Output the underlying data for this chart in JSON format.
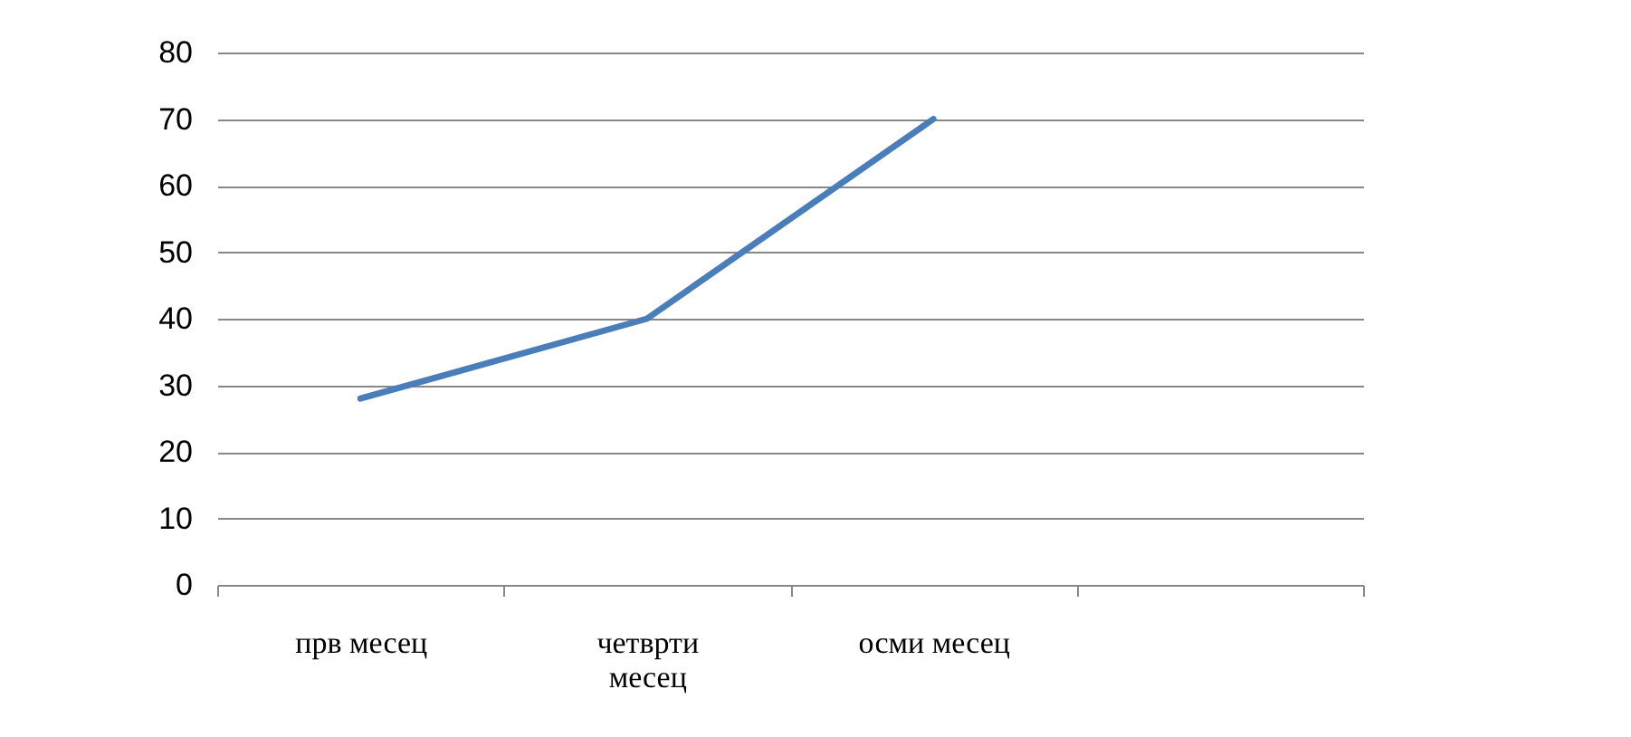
{
  "chart_data": {
    "type": "line",
    "categories": [
      "прв месец",
      "четврти месец",
      "осми месец",
      null
    ],
    "series": [
      {
        "color": "#4a7ebb",
        "values": [
          28,
          40,
          70,
          null
        ]
      }
    ],
    "ylim": [
      0,
      80
    ],
    "yticks": [
      0,
      10,
      20,
      30,
      40,
      50,
      60,
      70,
      80
    ],
    "grid": "y"
  }
}
